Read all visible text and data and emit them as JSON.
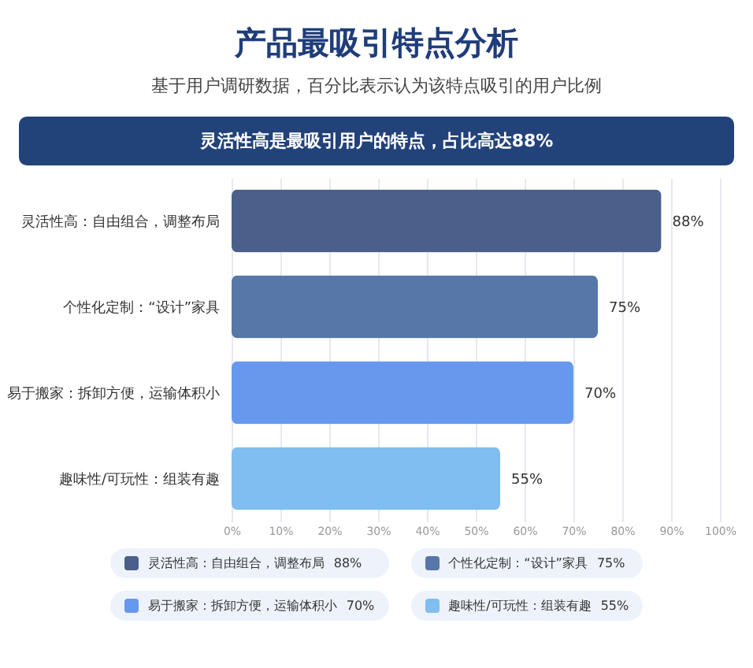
{
  "chart_data": {
    "type": "bar",
    "orientation": "horizontal",
    "title": "产品最吸引特点分析",
    "subtitle": "基于用户调研数据，百分比表示认为该特点吸引的用户比例",
    "annotations": [
      "灵活性高是最吸引用户的特点，占比高达88%"
    ],
    "categories": [
      "灵活性高：自由组合，调整布局",
      "个性化定制：“设计”家具",
      "易于搬家：拆卸方便，运输体积小",
      "趣味性/可玩性：组装有趣"
    ],
    "values": [
      88,
      75,
      70,
      55
    ],
    "colors": [
      "#4a5f8a",
      "#5677a8",
      "#6699ee",
      "#80bdf0"
    ],
    "value_labels": [
      "88%",
      "75%",
      "70%",
      "55%"
    ],
    "xlim": [
      0,
      100
    ],
    "xticks": [
      {
        "value": 0,
        "label": "0%"
      },
      {
        "value": 10,
        "label": "10%"
      },
      {
        "value": 20,
        "label": "20%"
      },
      {
        "value": 30,
        "label": "30%"
      },
      {
        "value": 40,
        "label": "40%"
      },
      {
        "value": 50,
        "label": "50%"
      },
      {
        "value": 60,
        "label": "60%"
      },
      {
        "value": 70,
        "label": "70%"
      },
      {
        "value": 80,
        "label": "80%"
      },
      {
        "value": 90,
        "label": "90%"
      },
      {
        "value": 100,
        "label": "100%"
      }
    ],
    "grid": "x"
  }
}
